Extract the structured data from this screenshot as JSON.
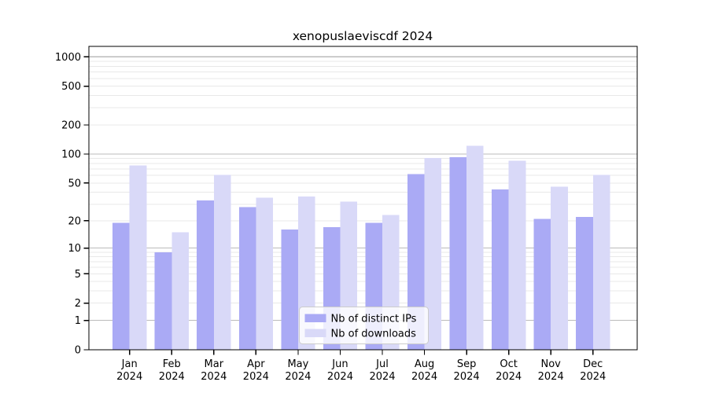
{
  "title": "xenopuslaeviscdf 2024",
  "chart_data": {
    "type": "bar",
    "title": "xenopuslaeviscdf 2024",
    "categories": [
      "Jan",
      "Feb",
      "Mar",
      "Apr",
      "May",
      "Jun",
      "Jul",
      "Aug",
      "Sep",
      "Oct",
      "Nov",
      "Dec"
    ],
    "category_year": "2024",
    "series": [
      {
        "name": "Nb of distinct IPs",
        "color": "#aaaaf5",
        "values": [
          19,
          9,
          33,
          28,
          16,
          17,
          19,
          62,
          93,
          43,
          21,
          22
        ]
      },
      {
        "name": "Nb of downloads",
        "color": "#d9d9f8",
        "values": [
          76,
          15,
          61,
          35,
          36,
          32,
          23,
          91,
          122,
          85,
          46,
          61
        ]
      }
    ],
    "y_scale": "log10(value+1)",
    "y_axis_max": 1280,
    "y_ticks": [
      0,
      1,
      2,
      5,
      10,
      20,
      50,
      100,
      200,
      500,
      1000
    ],
    "y_major_gridlines": [
      1,
      10,
      100,
      1000
    ],
    "y_minor_gridlines": [
      2,
      3,
      4,
      5,
      6,
      7,
      8,
      9,
      20,
      30,
      40,
      50,
      60,
      70,
      80,
      90,
      200,
      300,
      400,
      500,
      600,
      700,
      800,
      900
    ],
    "grid": "horizontal",
    "legend": {
      "position": "bottom-center-inside",
      "entries": [
        "Nb of distinct IPs",
        "Nb of downloads"
      ]
    },
    "colors": {
      "distinct_ips_bar": "#aaaaf5",
      "downloads_bar": "#d9d9f8",
      "major_grid": "#bbbbbb",
      "minor_grid": "#e8e8e8",
      "axis": "#000000",
      "legend_border": "#cccccc",
      "legend_background": "rgba(255,255,255,0.8)",
      "background": "#ffffff"
    }
  }
}
